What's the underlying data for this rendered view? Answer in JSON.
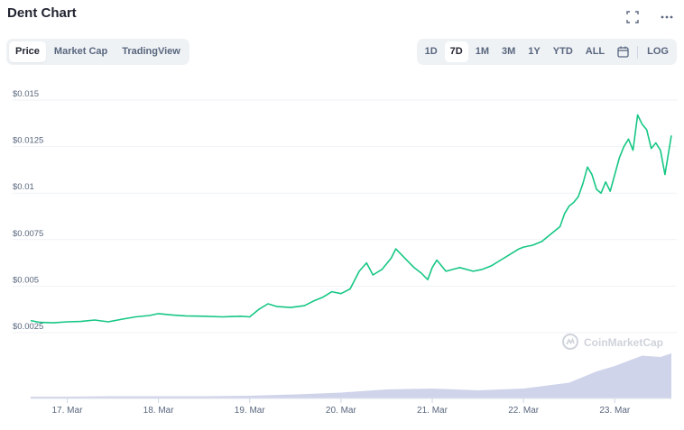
{
  "header": {
    "title": "Dent Chart",
    "expand_icon": "expand-icon",
    "more_icon": "more-dots-icon"
  },
  "view_tabs": [
    {
      "label": "Price",
      "active": true
    },
    {
      "label": "Market Cap",
      "active": false
    },
    {
      "label": "TradingView",
      "active": false
    }
  ],
  "range_tabs": [
    {
      "label": "1D",
      "active": false
    },
    {
      "label": "7D",
      "active": true
    },
    {
      "label": "1M",
      "active": false
    },
    {
      "label": "3M",
      "active": false
    },
    {
      "label": "1Y",
      "active": false
    },
    {
      "label": "YTD",
      "active": false
    },
    {
      "label": "ALL",
      "active": false
    }
  ],
  "calendar_icon": "calendar-icon",
  "log_label": "LOG",
  "watermark": "CoinMarketCap",
  "colors": {
    "line": "#16c784",
    "volume": "#c8cde6",
    "grid": "#eff2f5",
    "text": "#58667e"
  },
  "chart_data": {
    "type": "line",
    "title": "Dent Chart",
    "xlabel": "",
    "ylabel": "",
    "x_tick_labels": [
      "17. Mar",
      "18. Mar",
      "19. Mar",
      "20. Mar",
      "21. Mar",
      "22. Mar",
      "23. Mar"
    ],
    "y_tick_labels": [
      "$0.0025",
      "$0.005",
      "$0.0075",
      "$0.01",
      "$0.0125",
      "$0.015"
    ],
    "y_ticks": [
      0.0025,
      0.005,
      0.0075,
      0.01,
      0.0125,
      0.015
    ],
    "ylim": [
      0.0025,
      0.015
    ],
    "xlim": [
      16.6,
      23.62
    ],
    "grid": true,
    "series": [
      {
        "name": "",
        "values": [
          [
            16.6,
            0.00315
          ],
          [
            16.7,
            0.00305
          ],
          [
            16.85,
            0.00303
          ],
          [
            17.0,
            0.00308
          ],
          [
            17.15,
            0.0031
          ],
          [
            17.3,
            0.00318
          ],
          [
            17.45,
            0.00308
          ],
          [
            17.6,
            0.00322
          ],
          [
            17.75,
            0.00335
          ],
          [
            17.9,
            0.00342
          ],
          [
            18.0,
            0.00352
          ],
          [
            18.15,
            0.00345
          ],
          [
            18.3,
            0.0034
          ],
          [
            18.5,
            0.00338
          ],
          [
            18.7,
            0.00335
          ],
          [
            18.9,
            0.00338
          ],
          [
            19.0,
            0.00335
          ],
          [
            19.1,
            0.00375
          ],
          [
            19.2,
            0.00405
          ],
          [
            19.3,
            0.0039
          ],
          [
            19.45,
            0.00385
          ],
          [
            19.6,
            0.00395
          ],
          [
            19.7,
            0.0042
          ],
          [
            19.8,
            0.0044
          ],
          [
            19.9,
            0.0047
          ],
          [
            20.0,
            0.0046
          ],
          [
            20.1,
            0.00485
          ],
          [
            20.2,
            0.0058
          ],
          [
            20.28,
            0.00625
          ],
          [
            20.35,
            0.0056
          ],
          [
            20.45,
            0.0059
          ],
          [
            20.55,
            0.0065
          ],
          [
            20.6,
            0.007
          ],
          [
            20.7,
            0.0065
          ],
          [
            20.8,
            0.006
          ],
          [
            20.88,
            0.0057
          ],
          [
            20.95,
            0.00535
          ],
          [
            21.0,
            0.006
          ],
          [
            21.05,
            0.0064
          ],
          [
            21.15,
            0.0058
          ],
          [
            21.3,
            0.006
          ],
          [
            21.45,
            0.0058
          ],
          [
            21.55,
            0.0059
          ],
          [
            21.65,
            0.0061
          ],
          [
            21.75,
            0.0064
          ],
          [
            21.85,
            0.0067
          ],
          [
            21.95,
            0.007
          ],
          [
            22.0,
            0.0071
          ],
          [
            22.1,
            0.0072
          ],
          [
            22.2,
            0.0074
          ],
          [
            22.3,
            0.0078
          ],
          [
            22.4,
            0.0082
          ],
          [
            22.45,
            0.0089
          ],
          [
            22.5,
            0.0093
          ],
          [
            22.55,
            0.0095
          ],
          [
            22.6,
            0.0098
          ],
          [
            22.65,
            0.0105
          ],
          [
            22.7,
            0.0114
          ],
          [
            22.75,
            0.011
          ],
          [
            22.8,
            0.0102
          ],
          [
            22.85,
            0.01
          ],
          [
            22.9,
            0.0106
          ],
          [
            22.95,
            0.0101
          ],
          [
            23.0,
            0.011
          ],
          [
            23.05,
            0.0119
          ],
          [
            23.1,
            0.0125
          ],
          [
            23.15,
            0.0129
          ],
          [
            23.2,
            0.0123
          ],
          [
            23.25,
            0.0142
          ],
          [
            23.3,
            0.0137
          ],
          [
            23.35,
            0.0134
          ],
          [
            23.4,
            0.0124
          ],
          [
            23.45,
            0.0127
          ],
          [
            23.5,
            0.0123
          ],
          [
            23.55,
            0.011
          ],
          [
            23.62,
            0.0131
          ]
        ]
      },
      {
        "name": "",
        "values": [
          [
            16.6,
            0.04
          ],
          [
            17.0,
            0.04
          ],
          [
            17.5,
            0.05
          ],
          [
            18.0,
            0.05
          ],
          [
            18.5,
            0.05
          ],
          [
            19.0,
            0.06
          ],
          [
            19.5,
            0.09
          ],
          [
            20.0,
            0.13
          ],
          [
            20.5,
            0.2
          ],
          [
            21.0,
            0.22
          ],
          [
            21.5,
            0.18
          ],
          [
            22.0,
            0.22
          ],
          [
            22.5,
            0.35
          ],
          [
            22.8,
            0.6
          ],
          [
            23.0,
            0.72
          ],
          [
            23.3,
            0.95
          ],
          [
            23.5,
            0.92
          ],
          [
            23.62,
            1.0
          ]
        ]
      }
    ]
  }
}
